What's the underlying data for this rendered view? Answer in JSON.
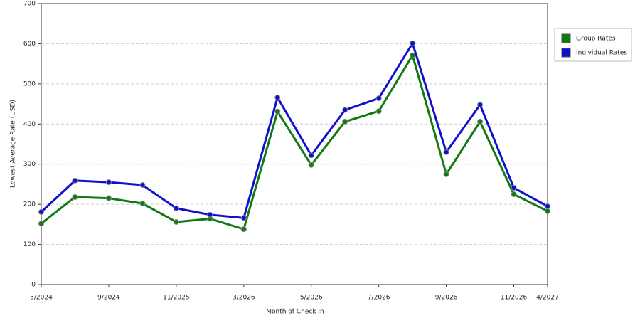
{
  "chart_data": {
    "type": "line",
    "x_label": "Month of Check In",
    "y_label": "Lowest Average Rate (USD)",
    "categories": [
      "5/2024",
      null,
      "9/2024",
      null,
      "11/2025",
      null,
      "3/2026",
      null,
      "5/2026",
      null,
      "7/2026",
      null,
      "9/2026",
      null,
      "11/2026",
      "4/2027"
    ],
    "series": [
      {
        "name": "Group Rates",
        "color": "#117a11",
        "values": [
          152,
          218,
          215,
          202,
          156,
          164,
          138,
          431,
          298,
          406,
          432,
          571,
          275,
          406,
          225,
          183
        ]
      },
      {
        "name": "Individual Rates",
        "color": "#1010cc",
        "values": [
          181,
          259,
          255,
          248,
          190,
          174,
          166,
          466,
          322,
          435,
          464,
          601,
          330,
          448,
          241,
          195
        ]
      }
    ],
    "ylim": [
      0,
      700
    ],
    "yticks": [
      0,
      100,
      200,
      300,
      400,
      500,
      600,
      700
    ],
    "grid": true
  }
}
